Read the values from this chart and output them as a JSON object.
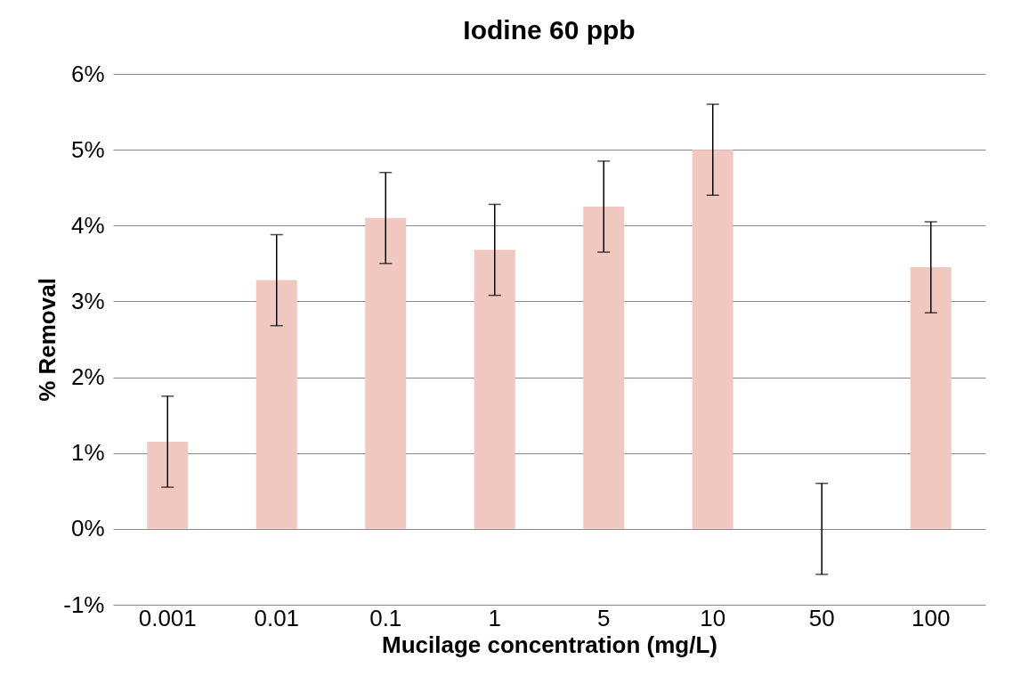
{
  "chart_data": {
    "type": "bar",
    "title": "Iodine 60 ppb",
    "xlabel": "Mucilage concentration (mg/L)",
    "ylabel": "% Removal",
    "categories": [
      "0.001",
      "0.01",
      "0.1",
      "1",
      "5",
      "10",
      "50",
      "100"
    ],
    "values": [
      1.15,
      3.28,
      4.1,
      3.68,
      4.25,
      5.0,
      0,
      3.45
    ],
    "errors": [
      0.6,
      0.6,
      0.6,
      0.6,
      0.6,
      0.6,
      0.6,
      0.6
    ],
    "color": "#f0c8c0",
    "ylim": [
      -1,
      6
    ],
    "yticks": [
      {
        "value": -1,
        "label": "-1%"
      },
      {
        "value": 0,
        "label": "0%"
      },
      {
        "value": 1,
        "label": "1%"
      },
      {
        "value": 2,
        "label": "2%"
      },
      {
        "value": 3,
        "label": "3%"
      },
      {
        "value": 4,
        "label": "4%"
      },
      {
        "value": 5,
        "label": "5%"
      },
      {
        "value": 6,
        "label": "6%"
      }
    ],
    "grid": "y"
  }
}
